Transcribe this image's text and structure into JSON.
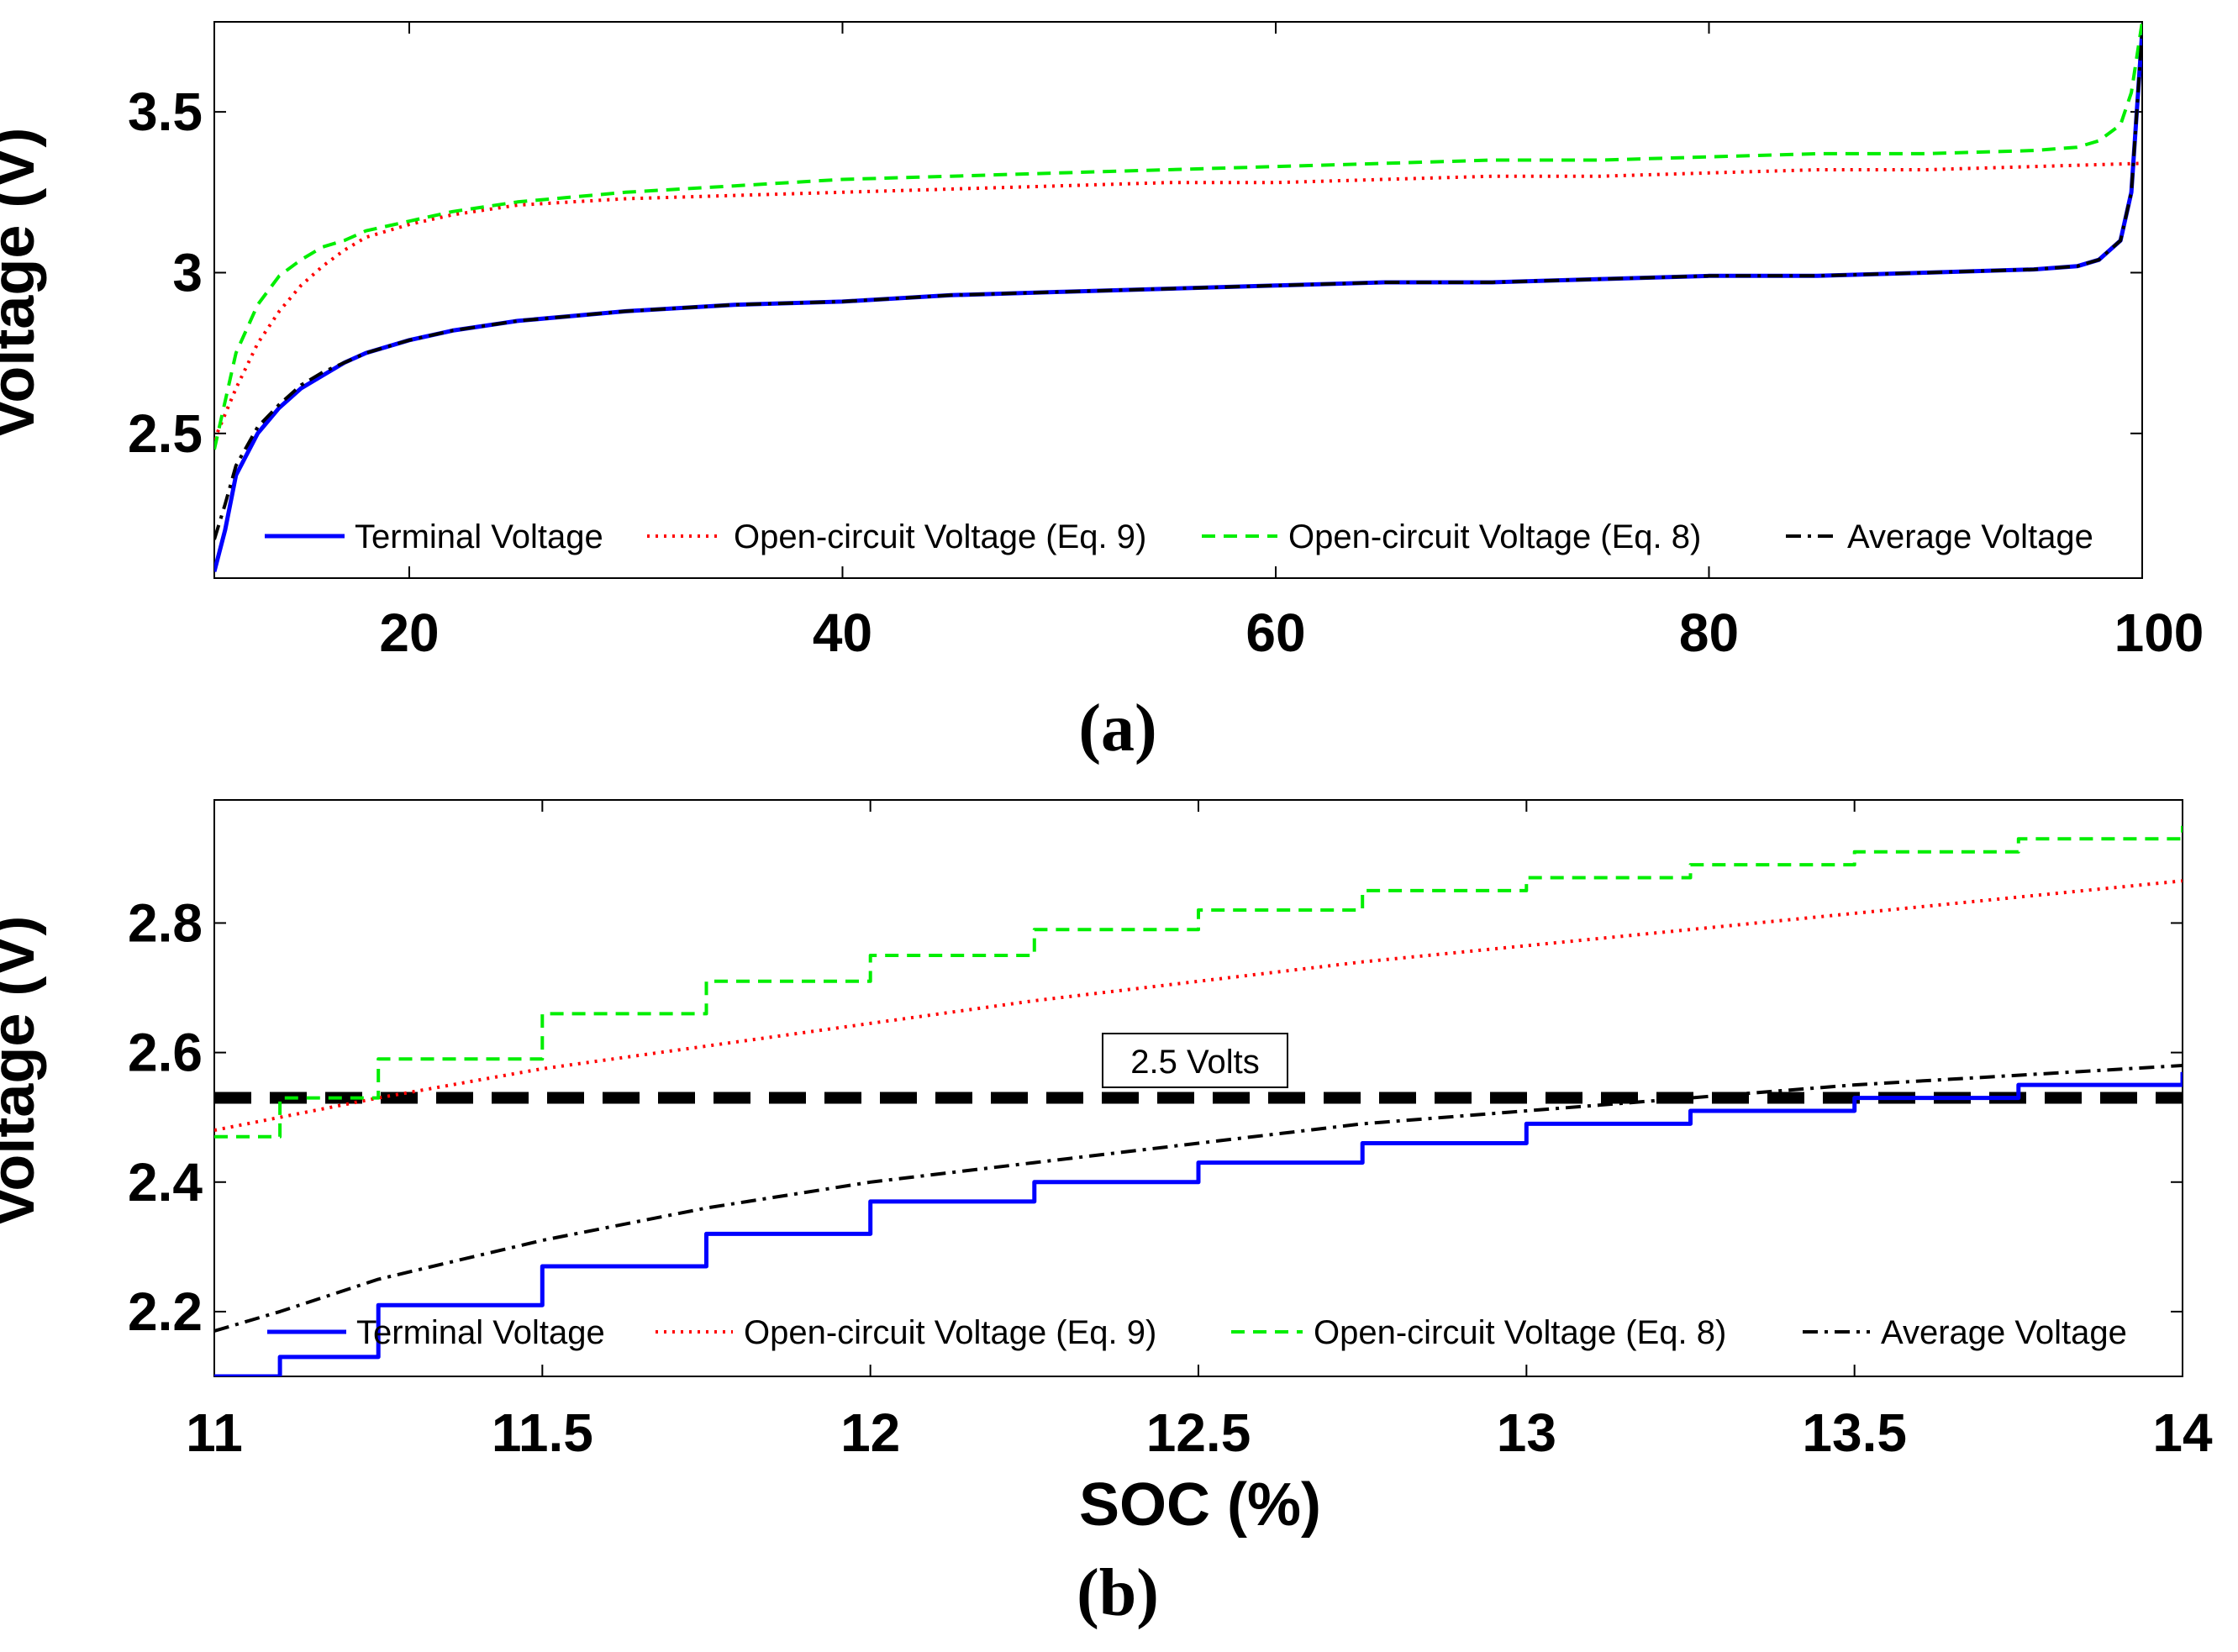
{
  "chart_data": [
    {
      "type": "line",
      "panel_label": "(a)",
      "title": "",
      "xlabel": "",
      "ylabel": "Voltage (V)",
      "xlim": [
        11,
        100
      ],
      "ylim": [
        2.05,
        3.78
      ],
      "xticks": [
        20,
        40,
        60,
        80,
        100
      ],
      "xtick_labels": [
        "20",
        "40",
        "60",
        "80",
        "100"
      ],
      "yticks": [
        2.5,
        3,
        3.5
      ],
      "ytick_labels": [
        "2.5",
        "3",
        "3.5"
      ],
      "grid": false,
      "legend_position": "bottom",
      "series": [
        {
          "name": "Terminal Voltage",
          "color": "#0000ff",
          "dash": "solid",
          "x": [
            11,
            11.5,
            12,
            13,
            14,
            15,
            16,
            17,
            18,
            20,
            22,
            25,
            30,
            35,
            40,
            45,
            50,
            55,
            60,
            65,
            70,
            75,
            80,
            85,
            90,
            95,
            97,
            98,
            99,
            99.5,
            100
          ],
          "y": [
            2.07,
            2.2,
            2.37,
            2.5,
            2.58,
            2.64,
            2.68,
            2.72,
            2.75,
            2.79,
            2.82,
            2.85,
            2.88,
            2.9,
            2.91,
            2.93,
            2.94,
            2.95,
            2.96,
            2.97,
            2.97,
            2.98,
            2.99,
            2.99,
            3.0,
            3.01,
            3.02,
            3.04,
            3.1,
            3.25,
            3.75
          ]
        },
        {
          "name": "Open-circuit Voltage (Eq. 9)",
          "color": "#ff0000",
          "dash": "dotted",
          "x": [
            11,
            12,
            13,
            14,
            15,
            16,
            17,
            18,
            20,
            22,
            25,
            30,
            35,
            40,
            45,
            50,
            55,
            60,
            65,
            70,
            75,
            80,
            85,
            90,
            95,
            100
          ],
          "y": [
            2.48,
            2.64,
            2.78,
            2.88,
            2.96,
            3.02,
            3.07,
            3.11,
            3.15,
            3.18,
            3.21,
            3.23,
            3.24,
            3.25,
            3.26,
            3.27,
            3.28,
            3.28,
            3.29,
            3.3,
            3.3,
            3.31,
            3.32,
            3.32,
            3.33,
            3.34
          ]
        },
        {
          "name": "Open-circuit Voltage (Eq. 8)",
          "color": "#00ee00",
          "dash": "dashed",
          "x": [
            11,
            12,
            13,
            14,
            15,
            16,
            17,
            18,
            20,
            22,
            25,
            30,
            35,
            40,
            45,
            50,
            55,
            60,
            65,
            70,
            75,
            80,
            85,
            90,
            95,
            97,
            98,
            99,
            99.5,
            100
          ],
          "y": [
            2.45,
            2.75,
            2.9,
            2.99,
            3.04,
            3.08,
            3.1,
            3.13,
            3.16,
            3.19,
            3.22,
            3.25,
            3.27,
            3.29,
            3.3,
            3.31,
            3.32,
            3.33,
            3.34,
            3.35,
            3.35,
            3.36,
            3.37,
            3.37,
            3.38,
            3.39,
            3.41,
            3.46,
            3.56,
            3.78
          ]
        },
        {
          "name": "Average Voltage",
          "color": "#000000",
          "dash": "dashdot",
          "x": [
            11,
            11.5,
            12,
            13,
            14,
            15,
            16,
            17,
            18,
            20,
            22,
            25,
            30,
            35,
            40,
            45,
            50,
            55,
            60,
            65,
            70,
            75,
            80,
            85,
            90,
            95,
            97,
            98,
            99,
            99.5,
            100
          ],
          "y": [
            2.17,
            2.28,
            2.4,
            2.52,
            2.59,
            2.65,
            2.69,
            2.72,
            2.75,
            2.79,
            2.82,
            2.85,
            2.88,
            2.9,
            2.91,
            2.93,
            2.94,
            2.95,
            2.96,
            2.97,
            2.97,
            2.98,
            2.99,
            2.99,
            3.0,
            3.01,
            3.02,
            3.04,
            3.1,
            3.25,
            3.75
          ]
        }
      ]
    },
    {
      "type": "line",
      "panel_label": "(b)",
      "title": "",
      "xlabel": "SOC (%)",
      "ylabel": "Voltage (V)",
      "xlim": [
        11,
        14
      ],
      "ylim": [
        2.1,
        2.99
      ],
      "xticks": [
        11,
        11.5,
        12,
        12.5,
        13,
        13.5,
        14
      ],
      "xtick_labels": [
        "11",
        "11.5",
        "12",
        "12.5",
        "13",
        "13.5",
        "14"
      ],
      "yticks": [
        2.2,
        2.4,
        2.6,
        2.8
      ],
      "ytick_labels": [
        "2.2",
        "2.4",
        "2.6",
        "2.8"
      ],
      "grid": false,
      "legend_position": "bottom",
      "annotation": {
        "text": "2.5 Volts",
        "y": 2.53,
        "color": "#000000",
        "dash": "dashed"
      },
      "series": [
        {
          "name": "Terminal Voltage",
          "color": "#0000ff",
          "dash": "solid",
          "step": true,
          "x": [
            11,
            11.1,
            11.25,
            11.5,
            11.75,
            12,
            12.25,
            12.5,
            12.75,
            13,
            13.25,
            13.5,
            13.75,
            14
          ],
          "y": [
            2.1,
            2.13,
            2.21,
            2.27,
            2.32,
            2.37,
            2.4,
            2.43,
            2.46,
            2.49,
            2.51,
            2.53,
            2.55,
            2.57
          ]
        },
        {
          "name": "Open-circuit Voltage (Eq. 9)",
          "color": "#ff0000",
          "dash": "dotted",
          "x": [
            11,
            11.25,
            11.5,
            11.75,
            12,
            12.25,
            12.5,
            12.75,
            13,
            13.25,
            13.5,
            13.75,
            14
          ],
          "y": [
            2.48,
            2.53,
            2.575,
            2.61,
            2.645,
            2.68,
            2.71,
            2.74,
            2.765,
            2.79,
            2.815,
            2.84,
            2.865
          ]
        },
        {
          "name": "Open-circuit Voltage (Eq. 8)",
          "color": "#00ee00",
          "dash": "dashed",
          "step": true,
          "x": [
            11,
            11.1,
            11.25,
            11.5,
            11.75,
            12,
            12.25,
            12.5,
            12.75,
            13,
            13.25,
            13.5,
            13.75,
            14
          ],
          "y": [
            2.47,
            2.53,
            2.59,
            2.66,
            2.71,
            2.75,
            2.79,
            2.82,
            2.85,
            2.87,
            2.89,
            2.91,
            2.93,
            2.95
          ]
        },
        {
          "name": "Average Voltage",
          "color": "#000000",
          "dash": "dashdot",
          "x": [
            11,
            11.1,
            11.25,
            11.5,
            11.75,
            12,
            12.25,
            12.5,
            12.75,
            13,
            13.25,
            13.5,
            13.75,
            14
          ],
          "y": [
            2.17,
            2.2,
            2.25,
            2.31,
            2.36,
            2.4,
            2.43,
            2.46,
            2.49,
            2.51,
            2.53,
            2.55,
            2.565,
            2.58
          ]
        }
      ]
    }
  ]
}
